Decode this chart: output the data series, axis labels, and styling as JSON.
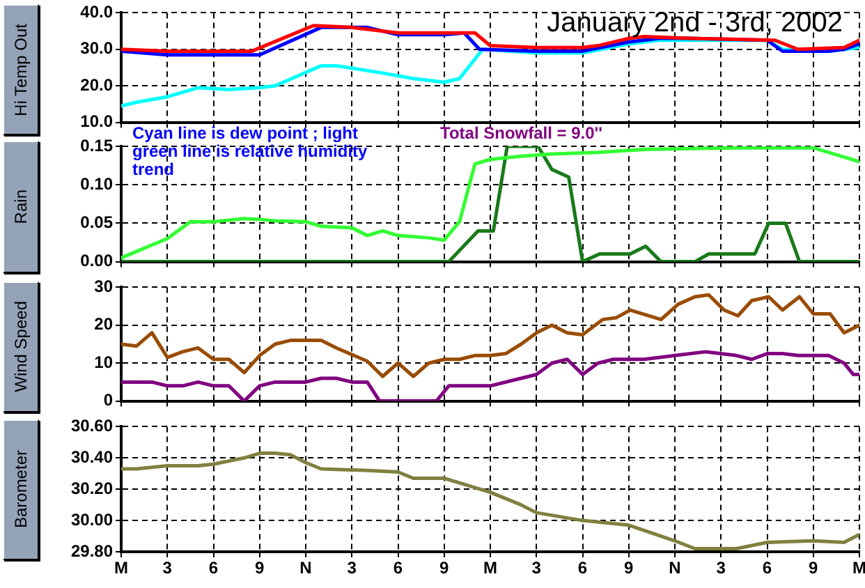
{
  "chart_data": [
    {
      "type": "line",
      "title": "January 2nd - 3rd, 2002",
      "ylabel": "Hi Temp Out",
      "xlim": [
        "2002-01-02T00:00",
        "2002-01-04T00:00"
      ],
      "xticks": [
        {
          "value": "2002-01-02T00:00",
          "label": null
        },
        {
          "value": "2002-01-02T03:00",
          "label": null
        },
        {
          "value": "2002-01-02T06:00",
          "label": null
        },
        {
          "value": "2002-01-02T09:00",
          "label": null
        },
        {
          "value": "2002-01-02T12:00",
          "label": null
        },
        {
          "value": "2002-01-02T15:00",
          "label": null
        },
        {
          "value": "2002-01-02T18:00",
          "label": null
        },
        {
          "value": "2002-01-02T21:00",
          "label": null
        },
        {
          "value": "2002-01-03T00:00",
          "label": null
        },
        {
          "value": "2002-01-03T03:00",
          "label": null
        },
        {
          "value": "2002-01-03T06:00",
          "label": null
        },
        {
          "value": "2002-01-03T09:00",
          "label": null
        },
        {
          "value": "2002-01-03T12:00",
          "label": null
        },
        {
          "value": "2002-01-03T15:00",
          "label": null
        },
        {
          "value": "2002-01-03T18:00",
          "label": null
        },
        {
          "value": "2002-01-03T21:00",
          "label": null
        },
        {
          "value": "2002-01-04T00:00",
          "label": null
        }
      ],
      "ylim": [
        10,
        40
      ],
      "yticks": [
        {
          "value": 10,
          "label": "10.0"
        },
        {
          "value": 20,
          "label": "20.0"
        },
        {
          "value": 30,
          "label": "30.0"
        },
        {
          "value": 40,
          "label": "40.0"
        }
      ],
      "grid": true,
      "legend": false,
      "marker": "none",
      "line_style": "solid",
      "tick_labels": "y",
      "series": [
        {
          "color": "#ff0000",
          "x": [
            "2002-01-02T00:00",
            "2002-01-02T03:00",
            "2002-01-02T06:00",
            "2002-01-02T08:30",
            "2002-01-02T12:30",
            "2002-01-02T15:00",
            "2002-01-02T18:00",
            "2002-01-02T21:00",
            "2002-01-02T23:00",
            "2002-01-03T00:00",
            "2002-01-03T03:00",
            "2002-01-03T06:00",
            "2002-01-03T07:00",
            "2002-01-03T09:00",
            "2002-01-03T10:00",
            "2002-01-03T13:00",
            "2002-01-03T18:30",
            "2002-01-03T20:00",
            "2002-01-03T23:00",
            "2002-01-04T00:00"
          ],
          "values": [
            30,
            29.5,
            29.5,
            29.5,
            36.5,
            36,
            34.5,
            34.5,
            34.5,
            31,
            30.5,
            30.5,
            31,
            33,
            33.5,
            33,
            32.5,
            30,
            30.5,
            32.5
          ]
        },
        {
          "color": "#0000ff",
          "x": [
            "2002-01-02T00:00",
            "2002-01-02T03:00",
            "2002-01-02T06:00",
            "2002-01-02T09:00",
            "2002-01-02T13:00",
            "2002-01-02T16:00",
            "2002-01-02T18:00",
            "2002-01-02T21:00",
            "2002-01-02T22:18",
            "2002-01-02T23:18",
            "2002-01-03T03:00",
            "2002-01-03T06:00",
            "2002-01-03T09:00",
            "2002-01-03T11:00",
            "2002-01-03T13:00",
            "2002-01-03T18:00",
            "2002-01-03T19:00",
            "2002-01-03T22:00",
            "2002-01-03T23:00",
            "2002-01-04T00:00"
          ],
          "values": [
            29.5,
            28.5,
            28.5,
            28.5,
            36,
            36,
            34,
            34,
            34.5,
            30,
            29.5,
            29.5,
            32,
            33,
            33,
            32.5,
            29.5,
            29.5,
            30,
            31.5
          ]
        },
        {
          "color": "#00ffff",
          "x": [
            "2002-01-02T00:00",
            "2002-01-02T01:00",
            "2002-01-02T03:00",
            "2002-01-02T05:00",
            "2002-01-02T07:00",
            "2002-01-02T09:00",
            "2002-01-02T10:00",
            "2002-01-02T13:00",
            "2002-01-02T14:00",
            "2002-01-02T17:00",
            "2002-01-02T19:00",
            "2002-01-02T21:00",
            "2002-01-02T22:00",
            "2002-01-02T23:30",
            "2002-01-03T03:00",
            "2002-01-03T06:00",
            "2002-01-03T09:00",
            "2002-01-03T11:00",
            "2002-01-03T18:00",
            "2002-01-03T19:00",
            "2002-01-03T22:00",
            "2002-01-04T00:00"
          ],
          "values": [
            14.5,
            15.5,
            17,
            19.5,
            19,
            19.5,
            20,
            25.5,
            25.5,
            23.5,
            22,
            21,
            22,
            30,
            29,
            29,
            31.5,
            32.5,
            32.5,
            30,
            29.5,
            30.5
          ]
        }
      ]
    },
    {
      "type": "line",
      "ylabel": "Rain",
      "xlim": [
        "2002-01-02T00:00",
        "2002-01-04T00:00"
      ],
      "xticks": [
        {
          "value": "2002-01-02T00:00",
          "label": null
        },
        {
          "value": "2002-01-02T03:00",
          "label": null
        },
        {
          "value": "2002-01-02T06:00",
          "label": null
        },
        {
          "value": "2002-01-02T09:00",
          "label": null
        },
        {
          "value": "2002-01-02T12:00",
          "label": null
        },
        {
          "value": "2002-01-02T15:00",
          "label": null
        },
        {
          "value": "2002-01-02T18:00",
          "label": null
        },
        {
          "value": "2002-01-02T21:00",
          "label": null
        },
        {
          "value": "2002-01-03T00:00",
          "label": null
        },
        {
          "value": "2002-01-03T03:00",
          "label": null
        },
        {
          "value": "2002-01-03T06:00",
          "label": null
        },
        {
          "value": "2002-01-03T09:00",
          "label": null
        },
        {
          "value": "2002-01-03T12:00",
          "label": null
        },
        {
          "value": "2002-01-03T15:00",
          "label": null
        },
        {
          "value": "2002-01-03T18:00",
          "label": null
        },
        {
          "value": "2002-01-03T21:00",
          "label": null
        },
        {
          "value": "2002-01-04T00:00",
          "label": null
        }
      ],
      "ylim": [
        0,
        0.15
      ],
      "yticks": [
        {
          "value": 0,
          "label": "0.00"
        },
        {
          "value": 0.05,
          "label": "0.05"
        },
        {
          "value": 0.1,
          "label": "0.10"
        },
        {
          "value": 0.15,
          "label": "0.15"
        }
      ],
      "grid": true,
      "legend": false,
      "marker": "none",
      "line_style": "solid",
      "tick_labels": "y",
      "annotations": [
        "Cyan line is dew point ; light green line is relative humidity trend",
        "Total Snowfall = 9.0''"
      ],
      "series": [
        {
          "color": "#33ff33",
          "x": [
            "2002-01-02T00:00",
            "2002-01-02T03:00",
            "2002-01-02T04:30",
            "2002-01-02T06:00",
            "2002-01-02T08:00",
            "2002-01-02T09:00",
            "2002-01-02T10:00",
            "2002-01-02T12:00",
            "2002-01-02T13:00",
            "2002-01-02T15:00",
            "2002-01-02T16:00",
            "2002-01-02T17:00",
            "2002-01-02T18:00",
            "2002-01-02T20:00",
            "2002-01-02T21:00",
            "2002-01-02T22:00",
            "2002-01-02T23:00",
            "2002-01-03T00:00",
            "2002-01-03T02:00",
            "2002-01-03T04:00",
            "2002-01-03T07:00",
            "2002-01-03T10:00",
            "2002-01-03T16:00",
            "2002-01-03T21:00",
            "2002-01-04T00:00"
          ],
          "values": [
            0.005,
            0.03,
            0.052,
            0.052,
            0.056,
            0.055,
            0.053,
            0.052,
            0.046,
            0.044,
            0.034,
            0.04,
            0.034,
            0.031,
            0.028,
            0.052,
            0.127,
            0.133,
            0.137,
            0.14,
            0.142,
            0.146,
            0.148,
            0.148,
            0.13
          ]
        },
        {
          "color": "#1a7a1a",
          "x": [
            "2002-01-02T00:00",
            "2002-01-02T21:18",
            "2002-01-02T23:12",
            "2002-01-03T00:12",
            "2002-01-03T01:06",
            "2002-01-03T03:06",
            "2002-01-03T04:00",
            "2002-01-03T05:06",
            "2002-01-03T06:00",
            "2002-01-03T07:06",
            "2002-01-03T09:06",
            "2002-01-03T10:06",
            "2002-01-03T11:06",
            "2002-01-03T13:18",
            "2002-01-03T14:12",
            "2002-01-03T17:12",
            "2002-01-03T18:06",
            "2002-01-03T19:12",
            "2002-01-03T20:06",
            "2002-01-04T00:00"
          ],
          "values": [
            0,
            0,
            0.04,
            0.04,
            0.15,
            0.15,
            0.12,
            0.11,
            0,
            0.01,
            0.01,
            0.02,
            0,
            0,
            0.01,
            0.01,
            0.05,
            0.05,
            0,
            0
          ]
        }
      ]
    },
    {
      "type": "line",
      "ylabel": "Wind Speed",
      "xlim": [
        "2002-01-02T00:00",
        "2002-01-04T00:00"
      ],
      "xticks": [
        {
          "value": "2002-01-02T00:00",
          "label": null
        },
        {
          "value": "2002-01-02T03:00",
          "label": null
        },
        {
          "value": "2002-01-02T06:00",
          "label": null
        },
        {
          "value": "2002-01-02T09:00",
          "label": null
        },
        {
          "value": "2002-01-02T12:00",
          "label": null
        },
        {
          "value": "2002-01-02T15:00",
          "label": null
        },
        {
          "value": "2002-01-02T18:00",
          "label": null
        },
        {
          "value": "2002-01-02T21:00",
          "label": null
        },
        {
          "value": "2002-01-03T00:00",
          "label": null
        },
        {
          "value": "2002-01-03T03:00",
          "label": null
        },
        {
          "value": "2002-01-03T06:00",
          "label": null
        },
        {
          "value": "2002-01-03T09:00",
          "label": null
        },
        {
          "value": "2002-01-03T12:00",
          "label": null
        },
        {
          "value": "2002-01-03T15:00",
          "label": null
        },
        {
          "value": "2002-01-03T18:00",
          "label": null
        },
        {
          "value": "2002-01-03T21:00",
          "label": null
        },
        {
          "value": "2002-01-04T00:00",
          "label": null
        }
      ],
      "ylim": [
        0,
        30
      ],
      "yticks": [
        0,
        10,
        20,
        30
      ],
      "grid": true,
      "legend": false,
      "marker": "none",
      "line_style": "solid",
      "tick_labels": "y",
      "series": [
        {
          "color": "#994c00",
          "x": [
            "2002-01-02T00:00",
            "2002-01-02T01:00",
            "2002-01-02T02:00",
            "2002-01-02T03:00",
            "2002-01-02T04:00",
            "2002-01-02T05:00",
            "2002-01-02T06:00",
            "2002-01-02T07:00",
            "2002-01-02T08:00",
            "2002-01-02T09:00",
            "2002-01-02T10:00",
            "2002-01-02T11:00",
            "2002-01-02T13:00",
            "2002-01-02T14:00",
            "2002-01-02T16:00",
            "2002-01-02T17:00",
            "2002-01-02T18:00",
            "2002-01-02T19:00",
            "2002-01-02T20:00",
            "2002-01-02T21:00",
            "2002-01-02T22:00",
            "2002-01-02T23:00",
            "2002-01-03T00:00",
            "2002-01-03T01:00",
            "2002-01-03T02:00",
            "2002-01-03T03:00",
            "2002-01-03T04:00",
            "2002-01-03T05:00",
            "2002-01-03T06:00",
            "2002-01-03T07:18",
            "2002-01-03T08:12",
            "2002-01-03T09:06",
            "2002-01-03T11:06",
            "2002-01-03T12:12",
            "2002-01-03T13:18",
            "2002-01-03T14:12",
            "2002-01-03T15:12",
            "2002-01-03T16:06",
            "2002-01-03T17:00",
            "2002-01-03T18:06",
            "2002-01-03T19:00",
            "2002-01-03T20:06",
            "2002-01-03T21:00",
            "2002-01-03T22:06",
            "2002-01-03T23:00",
            "2002-01-04T00:00"
          ],
          "values": [
            15,
            14.5,
            18,
            11.5,
            13,
            14,
            11,
            11,
            7.5,
            12,
            15,
            16,
            16,
            14,
            10.5,
            6.5,
            10,
            6.5,
            10,
            11,
            11,
            12,
            12,
            12.5,
            15,
            18,
            20,
            18,
            17.5,
            21.5,
            22,
            24,
            21.5,
            25.5,
            27.5,
            28,
            24,
            22.5,
            26.5,
            27.5,
            24,
            27.5,
            23,
            23,
            18,
            20
          ]
        },
        {
          "color": "#800080",
          "x": [
            "2002-01-02T00:00",
            "2002-01-02T02:00",
            "2002-01-02T03:00",
            "2002-01-02T04:00",
            "2002-01-02T05:00",
            "2002-01-02T06:00",
            "2002-01-02T07:00",
            "2002-01-02T08:00",
            "2002-01-02T09:00",
            "2002-01-02T10:00",
            "2002-01-02T12:00",
            "2002-01-02T13:00",
            "2002-01-02T14:00",
            "2002-01-02T15:00",
            "2002-01-02T16:00",
            "2002-01-02T16:48",
            "2002-01-02T20:30",
            "2002-01-02T21:18",
            "2002-01-03T00:00",
            "2002-01-03T02:00",
            "2002-01-03T03:00",
            "2002-01-03T04:00",
            "2002-01-03T05:00",
            "2002-01-03T06:00",
            "2002-01-03T07:00",
            "2002-01-03T08:00",
            "2002-01-03T10:00",
            "2002-01-03T12:00",
            "2002-01-03T14:00",
            "2002-01-03T16:00",
            "2002-01-03T17:00",
            "2002-01-03T18:00",
            "2002-01-03T19:00",
            "2002-01-03T20:00",
            "2002-01-03T22:00",
            "2002-01-03T23:00",
            "2002-01-03T23:36",
            "2002-01-04T00:00"
          ],
          "values": [
            5,
            5,
            4,
            4,
            5,
            4,
            4,
            0,
            4,
            5,
            5,
            6,
            6,
            5,
            5,
            0,
            0,
            4,
            4,
            6,
            7,
            10,
            11,
            7,
            10,
            11,
            11,
            12,
            13,
            12,
            11,
            12.5,
            12.5,
            12,
            12,
            10,
            7,
            7
          ]
        }
      ]
    },
    {
      "type": "line",
      "ylabel": "Barometer",
      "xlim": [
        "2002-01-02T00:00",
        "2002-01-04T00:00"
      ],
      "xticks": [
        {
          "value": "2002-01-02T00:00",
          "label": "M"
        },
        {
          "value": "2002-01-02T03:00",
          "label": "3"
        },
        {
          "value": "2002-01-02T06:00",
          "label": "6"
        },
        {
          "value": "2002-01-02T09:00",
          "label": "9"
        },
        {
          "value": "2002-01-02T12:00",
          "label": "N"
        },
        {
          "value": "2002-01-02T15:00",
          "label": "3"
        },
        {
          "value": "2002-01-02T18:00",
          "label": "6"
        },
        {
          "value": "2002-01-02T21:00",
          "label": "9"
        },
        {
          "value": "2002-01-03T00:00",
          "label": "M"
        },
        {
          "value": "2002-01-03T03:00",
          "label": "3"
        },
        {
          "value": "2002-01-03T06:00",
          "label": "6"
        },
        {
          "value": "2002-01-03T09:00",
          "label": "9"
        },
        {
          "value": "2002-01-03T12:00",
          "label": "N"
        },
        {
          "value": "2002-01-03T15:00",
          "label": "3"
        },
        {
          "value": "2002-01-03T18:00",
          "label": "6"
        },
        {
          "value": "2002-01-03T21:00",
          "label": "9"
        },
        {
          "value": "2002-01-04T00:00",
          "label": "M"
        }
      ],
      "ylim": [
        29.8,
        30.6
      ],
      "yticks": [
        {
          "value": 29.8,
          "label": "29.80"
        },
        {
          "value": 30,
          "label": "30.00"
        },
        {
          "value": 30.2,
          "label": "30.20"
        },
        {
          "value": 30.4,
          "label": "30.40"
        },
        {
          "value": 30.6,
          "label": "30.60"
        }
      ],
      "grid": true,
      "legend": false,
      "marker": "none",
      "line_style": "solid",
      "series": [
        {
          "color": "#808040",
          "x": [
            "2002-01-02T00:00",
            "2002-01-02T01:00",
            "2002-01-02T03:00",
            "2002-01-02T05:00",
            "2002-01-02T06:00",
            "2002-01-02T08:00",
            "2002-01-02T09:00",
            "2002-01-02T10:00",
            "2002-01-02T11:00",
            "2002-01-02T12:00",
            "2002-01-02T13:00",
            "2002-01-02T16:00",
            "2002-01-02T18:00",
            "2002-01-02T19:00",
            "2002-01-02T21:00",
            "2002-01-02T22:00",
            "2002-01-03T00:00",
            "2002-01-03T02:00",
            "2002-01-03T03:00",
            "2002-01-03T06:00",
            "2002-01-03T09:00",
            "2002-01-03T12:00",
            "2002-01-03T13:18",
            "2002-01-03T16:00",
            "2002-01-03T18:00",
            "2002-01-03T21:00",
            "2002-01-03T23:00",
            "2002-01-04T00:00"
          ],
          "values": [
            30.33,
            30.33,
            30.35,
            30.35,
            30.36,
            30.4,
            30.43,
            30.43,
            30.42,
            30.37,
            30.33,
            30.32,
            30.31,
            30.27,
            30.27,
            30.24,
            30.18,
            30.1,
            30.05,
            30.0,
            29.97,
            29.87,
            29.82,
            29.82,
            29.86,
            29.87,
            29.86,
            29.91
          ]
        }
      ]
    }
  ]
}
